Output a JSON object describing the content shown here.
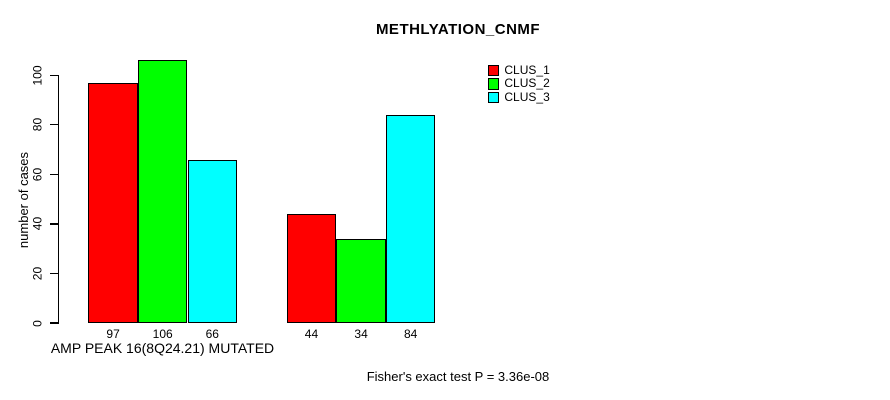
{
  "chart_data": {
    "type": "bar",
    "title": "METHLYATION_CNMF",
    "xlabel": "",
    "ylabel": "number of cases",
    "ylim": [
      0,
      110
    ],
    "yticks": [
      0,
      20,
      40,
      60,
      80,
      100
    ],
    "grid": false,
    "legend_position": "top-right",
    "legend": [
      "CLUS_1",
      "CLUS_2",
      "CLUS_3"
    ],
    "colors": [
      "#FF0000",
      "#00FF00",
      "#00FFFF"
    ],
    "categories": [
      "AMP PEAK 16(8Q24.21) MUTATED",
      ""
    ],
    "groups": [
      {
        "label": "AMP PEAK 16(8Q24.21) MUTATED",
        "values": [
          97,
          106,
          66
        ]
      },
      {
        "label": "",
        "values": [
          44,
          34,
          84
        ]
      }
    ],
    "series": [
      {
        "name": "CLUS_1",
        "values": [
          97,
          44
        ]
      },
      {
        "name": "CLUS_2",
        "values": [
          106,
          34
        ]
      },
      {
        "name": "CLUS_3",
        "values": [
          66,
          84
        ]
      }
    ],
    "bar_value_labels_shown": true,
    "annotation": "Fisher's exact test P = 3.36e-08"
  }
}
